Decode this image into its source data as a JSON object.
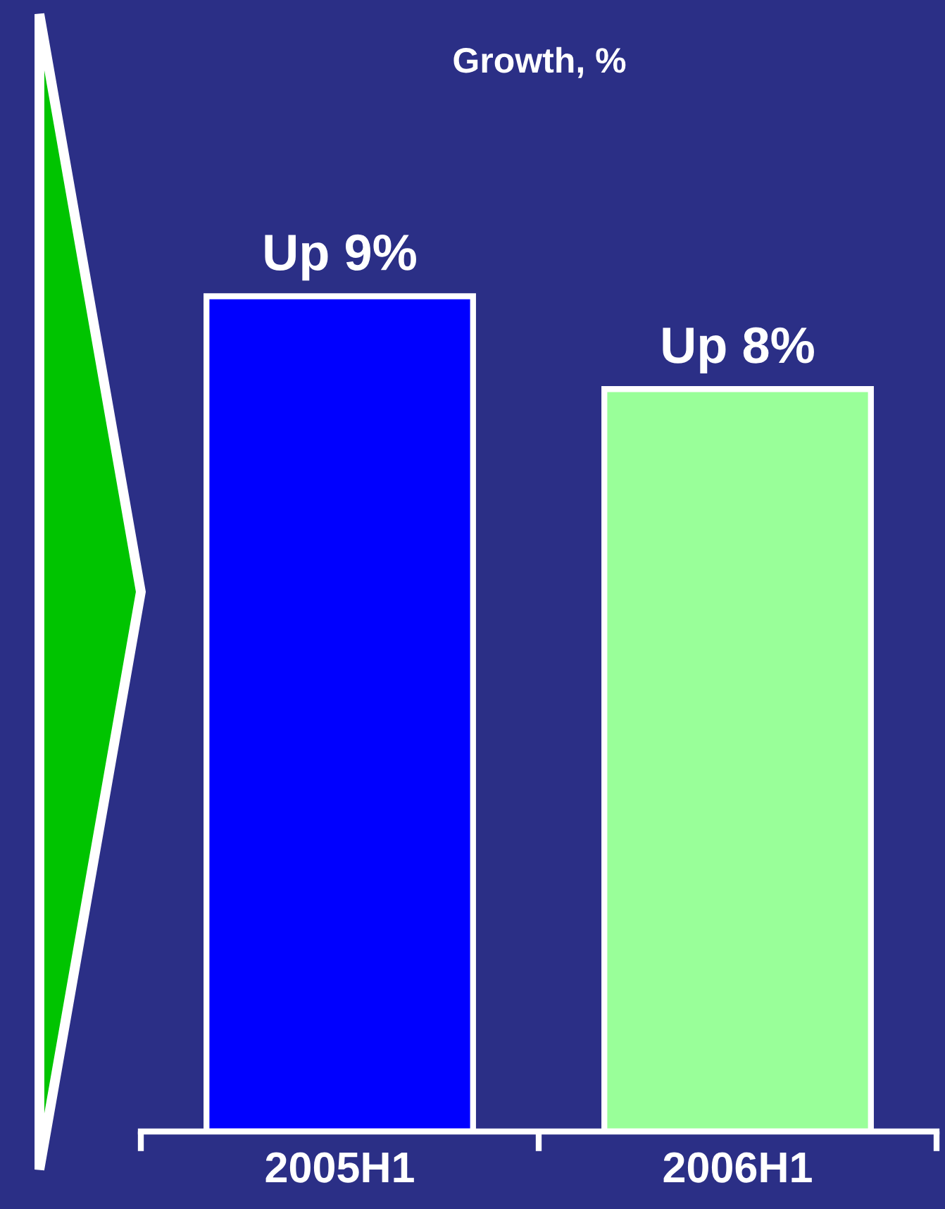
{
  "chart_data": {
    "type": "bar",
    "title": "Growth, %",
    "categories": [
      "2005H1",
      "2006H1"
    ],
    "values": [
      9,
      8
    ],
    "colors": [
      "#0000ff",
      "#99ff99"
    ],
    "value_labels": [
      "Up 9%",
      "Up 8%"
    ],
    "grid": false,
    "legend": false
  }
}
